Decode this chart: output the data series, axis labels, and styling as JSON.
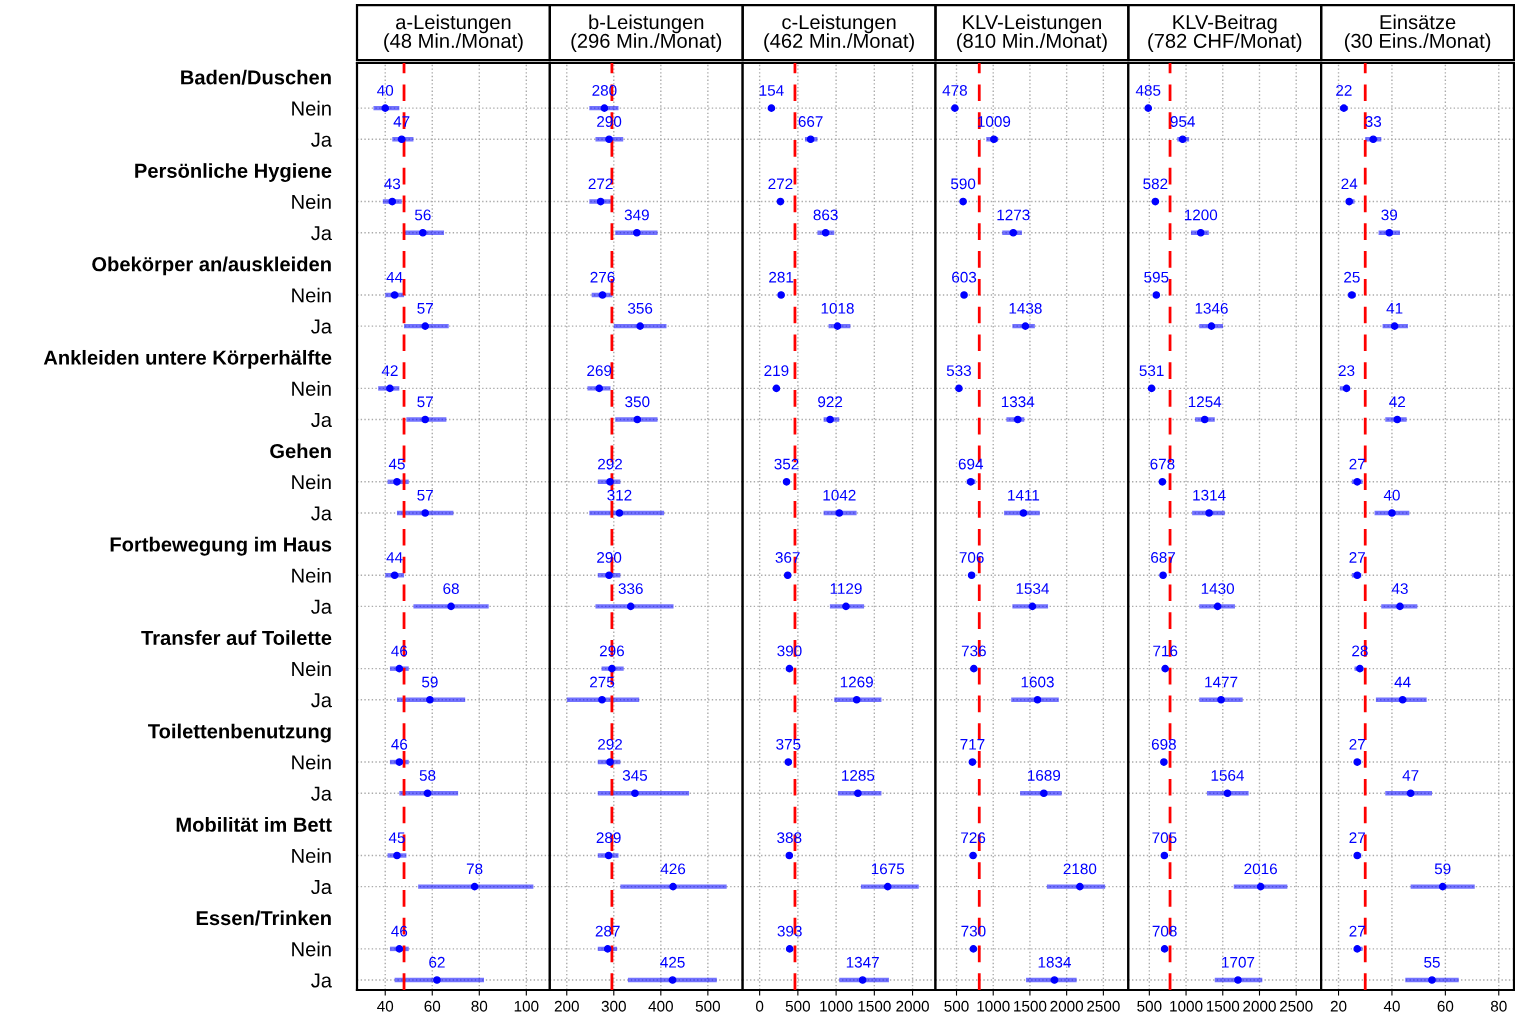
{
  "chart_data": [
    {
      "type": "scatter",
      "orientation": "horizontal",
      "title": "a-Leistungen\n(48 Min./Monat)",
      "color": "#0000ff",
      "marker": "circle",
      "grid": true,
      "data_labels": true,
      "categories": [
        "Baden/Duschen",
        "Nein",
        "Ja",
        "Persönliche Hygiene",
        "Nein",
        "Ja",
        "Obekörper an/auskleiden",
        "Nein",
        "Ja",
        "Ankleiden untere Körperhälfte",
        "Nein",
        "Ja",
        "Gehen",
        "Nein",
        "Ja",
        "Fortbewegung im Haus",
        "Nein",
        "Ja",
        "Transfer auf Toilette",
        "Nein",
        "Ja",
        "Toilettenbenutzung",
        "Nein",
        "Ja",
        "Mobilität im Bett",
        "Nein",
        "Ja",
        "Essen/Trinken",
        "Nein",
        "Ja"
      ],
      "values": [
        null,
        40,
        47,
        null,
        43,
        56,
        null,
        44,
        57,
        null,
        42,
        57,
        null,
        45,
        57,
        null,
        44,
        68,
        null,
        46,
        59,
        null,
        46,
        58,
        null,
        45,
        78,
        null,
        46,
        62
      ],
      "errors": [
        null,
        [
          35,
          46
        ],
        [
          43,
          52
        ],
        null,
        [
          39,
          47
        ],
        [
          48,
          65
        ],
        null,
        [
          40,
          48
        ],
        [
          48,
          67
        ],
        null,
        [
          37,
          46
        ],
        [
          49,
          66
        ],
        null,
        [
          41,
          50
        ],
        [
          45,
          69
        ],
        null,
        [
          40,
          48
        ],
        [
          52,
          84
        ],
        null,
        [
          42,
          50
        ],
        [
          45,
          74
        ],
        null,
        [
          42,
          50
        ],
        [
          46,
          71
        ],
        null,
        [
          41,
          49
        ],
        [
          54,
          103
        ],
        null,
        [
          42,
          50
        ],
        [
          44,
          82
        ]
      ],
      "xlim": [
        28,
        110
      ],
      "xticks": [
        40,
        60,
        80,
        100
      ],
      "ref_lines": [
        {
          "axis": "x",
          "value": 48,
          "color": "#ff0000",
          "line_style": "dashed"
        }
      ]
    },
    {
      "type": "scatter",
      "orientation": "horizontal",
      "title": "b-Leistungen\n(296 Min./Monat)",
      "color": "#0000ff",
      "marker": "circle",
      "grid": true,
      "data_labels": true,
      "tick_labels": "x",
      "values": [
        null,
        280,
        290,
        null,
        272,
        349,
        null,
        276,
        356,
        null,
        269,
        350,
        null,
        292,
        312,
        null,
        290,
        336,
        null,
        296,
        275,
        null,
        292,
        345,
        null,
        289,
        426,
        null,
        287,
        425
      ],
      "errors": [
        null,
        [
          248,
          310
        ],
        [
          261,
          320
        ],
        null,
        [
          248,
          297
        ],
        [
          303,
          393
        ],
        null,
        [
          253,
          297
        ],
        [
          300,
          412
        ],
        null,
        [
          244,
          293
        ],
        [
          303,
          393
        ],
        null,
        [
          266,
          314
        ],
        [
          248,
          407
        ],
        null,
        [
          266,
          314
        ],
        [
          261,
          427
        ],
        null,
        [
          274,
          321
        ],
        [
          200,
          354
        ],
        null,
        [
          266,
          314
        ],
        [
          266,
          460
        ],
        null,
        [
          266,
          310
        ],
        [
          314,
          540
        ],
        null,
        [
          266,
          307
        ],
        [
          330,
          519
        ]
      ],
      "xlim": [
        164,
        574
      ],
      "xticks": [
        200,
        300,
        400,
        500
      ],
      "ref_lines": [
        {
          "axis": "x",
          "value": 296,
          "color": "#ff0000",
          "line_style": "dashed"
        }
      ]
    },
    {
      "type": "scatter",
      "orientation": "horizontal",
      "title": "c-Leistungen\n(462 Min./Monat)",
      "color": "#0000ff",
      "marker": "circle",
      "grid": true,
      "data_labels": true,
      "tick_labels": "x",
      "values": [
        null,
        154,
        667,
        null,
        272,
        863,
        null,
        281,
        1018,
        null,
        219,
        922,
        null,
        352,
        1042,
        null,
        367,
        1129,
        null,
        390,
        1269,
        null,
        375,
        1285,
        null,
        388,
        1675,
        null,
        393,
        1347
      ],
      "errors": [
        null,
        null,
        [
          593,
          756
        ],
        null,
        null,
        [
          756,
          976
        ],
        null,
        null,
        [
          902,
          1187
        ],
        null,
        null,
        [
          837,
          1041
        ],
        null,
        null,
        [
          837,
          1268
        ],
        null,
        null,
        [
          919,
          1366
        ],
        null,
        null,
        [
          976,
          1593
        ],
        null,
        null,
        [
          1024,
          1593
        ],
        null,
        null,
        [
          1325,
          2081
        ],
        null,
        null,
        [
          1041,
          1691
        ]
      ],
      "xlim": [
        -222,
        2300
      ],
      "xticks": [
        0,
        500,
        1000,
        1500,
        2000
      ],
      "ref_lines": [
        {
          "axis": "x",
          "value": 462,
          "color": "#ff0000",
          "line_style": "dashed"
        }
      ]
    },
    {
      "type": "scatter",
      "orientation": "horizontal",
      "title": "KLV-Leistungen\n(810 Min./Monat)",
      "color": "#0000ff",
      "marker": "circle",
      "grid": true,
      "data_labels": true,
      "tick_labels": "x",
      "values": [
        null,
        478,
        1009,
        null,
        590,
        1273,
        null,
        603,
        1438,
        null,
        533,
        1334,
        null,
        694,
        1411,
        null,
        706,
        1534,
        null,
        736,
        1603,
        null,
        717,
        1689,
        null,
        726,
        2180,
        null,
        730,
        1834
      ],
      "errors": [
        null,
        null,
        [
          905,
          1067
        ],
        null,
        null,
        [
          1123,
          1391
        ],
        null,
        null,
        [
          1261,
          1567
        ],
        null,
        null,
        [
          1180,
          1423
        ],
        null,
        [
          638,
          759
        ],
        [
          1148,
          1634
        ],
        null,
        null,
        [
          1261,
          1747
        ],
        null,
        null,
        [
          1245,
          1893
        ],
        null,
        null,
        [
          1366,
          1933
        ],
        null,
        null,
        [
          1731,
          2524
        ],
        null,
        null,
        [
          1447,
          2136
        ]
      ],
      "xlim": [
        214,
        2840
      ],
      "xticks": [
        500,
        1000,
        1500,
        2000,
        2500
      ],
      "ref_lines": [
        {
          "axis": "x",
          "value": 810,
          "color": "#ff0000",
          "line_style": "dashed"
        }
      ]
    },
    {
      "type": "scatter",
      "orientation": "horizontal",
      "title": "KLV-Beitrag\n(782 CHF/Monat)",
      "color": "#0000ff",
      "marker": "circle",
      "grid": true,
      "data_labels": true,
      "tick_labels": "x",
      "values": [
        null,
        485,
        954,
        null,
        582,
        1200,
        null,
        595,
        1346,
        null,
        531,
        1254,
        null,
        678,
        1314,
        null,
        687,
        1430,
        null,
        716,
        1477,
        null,
        698,
        1564,
        null,
        705,
        2016,
        null,
        708,
        1707
      ],
      "errors": [
        null,
        null,
        [
          881,
          1042
        ],
        null,
        null,
        [
          1067,
          1310
        ],
        null,
        null,
        [
          1180,
          1504
        ],
        null,
        null,
        [
          1123,
          1391
        ],
        null,
        null,
        [
          1083,
          1528
        ],
        null,
        null,
        [
          1180,
          1666
        ],
        null,
        null,
        [
          1180,
          1771
        ],
        null,
        null,
        [
          1285,
          1852
        ],
        null,
        null,
        [
          1650,
          2379
        ],
        null,
        null,
        [
          1391,
          2038
        ]
      ],
      "xlim": [
        214,
        2840
      ],
      "xticks": [
        500,
        1000,
        1500,
        2000,
        2500
      ],
      "ref_lines": [
        {
          "axis": "x",
          "value": 782,
          "color": "#ff0000",
          "line_style": "dashed"
        }
      ]
    },
    {
      "type": "scatter",
      "orientation": "horizontal",
      "title": "Einsätze\n(30 Eins./Monat)",
      "color": "#0000ff",
      "marker": "circle",
      "grid": true,
      "data_labels": true,
      "tick_labels": "x",
      "values": [
        null,
        22,
        33,
        null,
        24,
        39,
        null,
        25,
        41,
        null,
        23,
        42,
        null,
        27,
        40,
        null,
        27,
        43,
        null,
        28,
        44,
        null,
        27,
        47,
        null,
        27,
        59,
        null,
        27,
        55
      ],
      "errors": [
        null,
        [
          20.5,
          23.5
        ],
        [
          30,
          36
        ],
        null,
        [
          23,
          26
        ],
        [
          35,
          43
        ],
        null,
        [
          23.5,
          26.5
        ],
        [
          36.5,
          46
        ],
        null,
        [
          20.5,
          24
        ],
        [
          37.5,
          45.5
        ],
        null,
        [
          25,
          29
        ],
        [
          33.5,
          46.5
        ],
        null,
        [
          25,
          28.5
        ],
        [
          36,
          49.5
        ],
        null,
        [
          26,
          29
        ],
        [
          34,
          53
        ],
        null,
        [
          26,
          28.5
        ],
        [
          37.5,
          55
        ],
        null,
        [
          26,
          28.5
        ],
        [
          47,
          71
        ],
        null,
        [
          26,
          29
        ],
        [
          45,
          65
        ]
      ],
      "xlim": [
        13.5,
        85.7
      ],
      "xticks": [
        20,
        40,
        60,
        80
      ],
      "ref_lines": [
        {
          "axis": "x",
          "value": 30,
          "color": "#ff0000",
          "line_style": "dashed"
        }
      ]
    }
  ]
}
